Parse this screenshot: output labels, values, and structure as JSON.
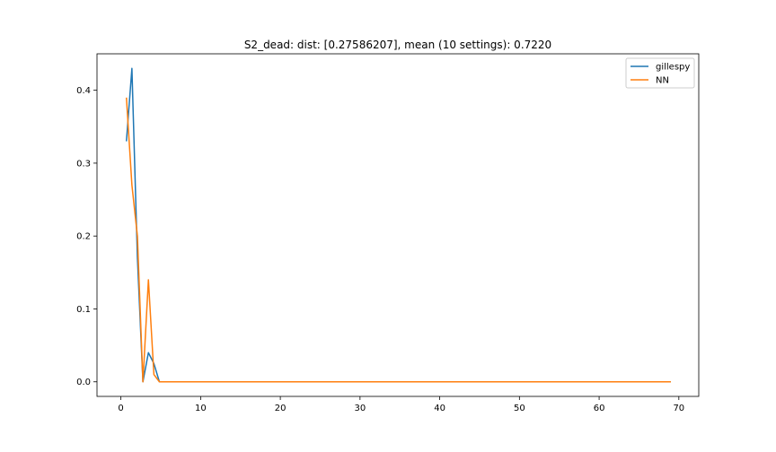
{
  "chart_data": {
    "type": "line",
    "title": "S2_dead: dist: [0.27586207], mean (10 settings): 0.7220",
    "xlabel": "",
    "ylabel": "",
    "xlim": [
      -3,
      72.5
    ],
    "ylim": [
      -0.02,
      0.45
    ],
    "xticks": [
      0,
      10,
      20,
      30,
      40,
      50,
      60,
      70
    ],
    "yticks": [
      0.0,
      0.1,
      0.2,
      0.3,
      0.4
    ],
    "ytick_labels": [
      "0.0",
      "0.1",
      "0.2",
      "0.3",
      "0.4"
    ],
    "xtick_labels": [
      "0",
      "10",
      "20",
      "30",
      "40",
      "50",
      "60",
      "70"
    ],
    "grid": false,
    "legend_position": "top-right",
    "series": [
      {
        "name": "gillespy",
        "color": "#1f77b4",
        "x": [
          0.69,
          1.38,
          2.07,
          2.76,
          3.45,
          4.14,
          4.83,
          69.0
        ],
        "y": [
          0.33,
          0.43,
          0.17,
          0.0,
          0.04,
          0.025,
          0.0,
          0.0
        ]
      },
      {
        "name": "NN",
        "color": "#ff7f0e",
        "x": [
          0.69,
          1.38,
          2.07,
          2.76,
          3.45,
          4.14,
          4.83,
          69.0
        ],
        "y": [
          0.39,
          0.27,
          0.2,
          0.0,
          0.14,
          0.01,
          0.0,
          0.0
        ]
      }
    ]
  }
}
